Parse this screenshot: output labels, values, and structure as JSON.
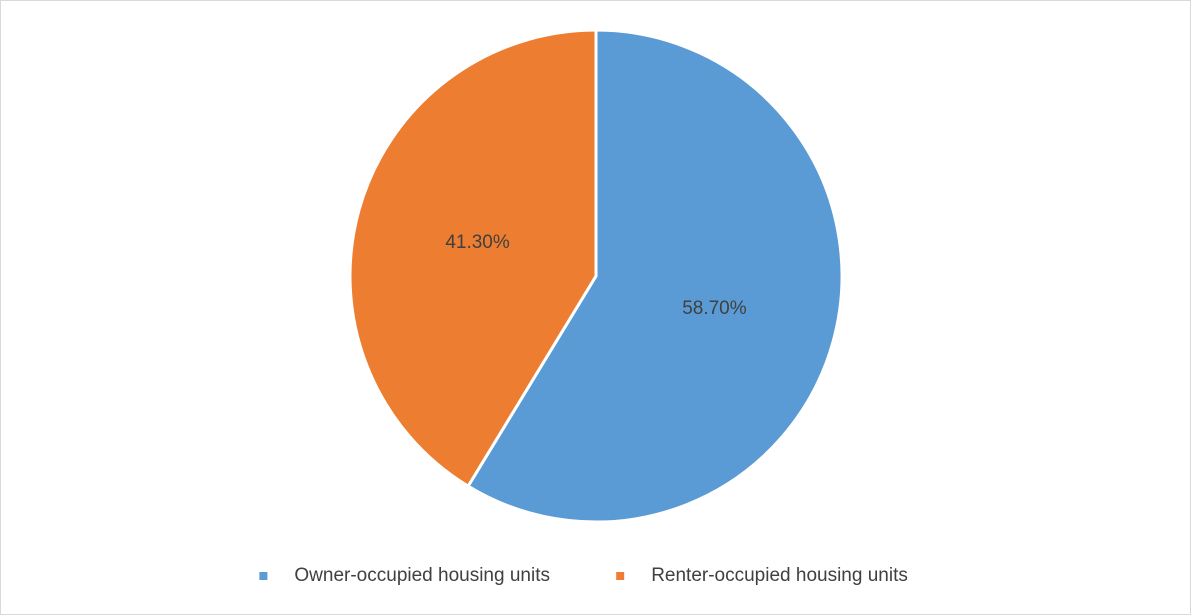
{
  "chart_data": {
    "type": "pie",
    "categories": [
      "Owner-occupied housing units",
      "Renter-occupied housing units"
    ],
    "values": [
      58.7,
      41.3
    ],
    "value_labels": [
      "58.70%",
      "41.30%"
    ],
    "colors": [
      "#5b9bd5",
      "#ed7d31"
    ],
    "legend": "bottom"
  }
}
